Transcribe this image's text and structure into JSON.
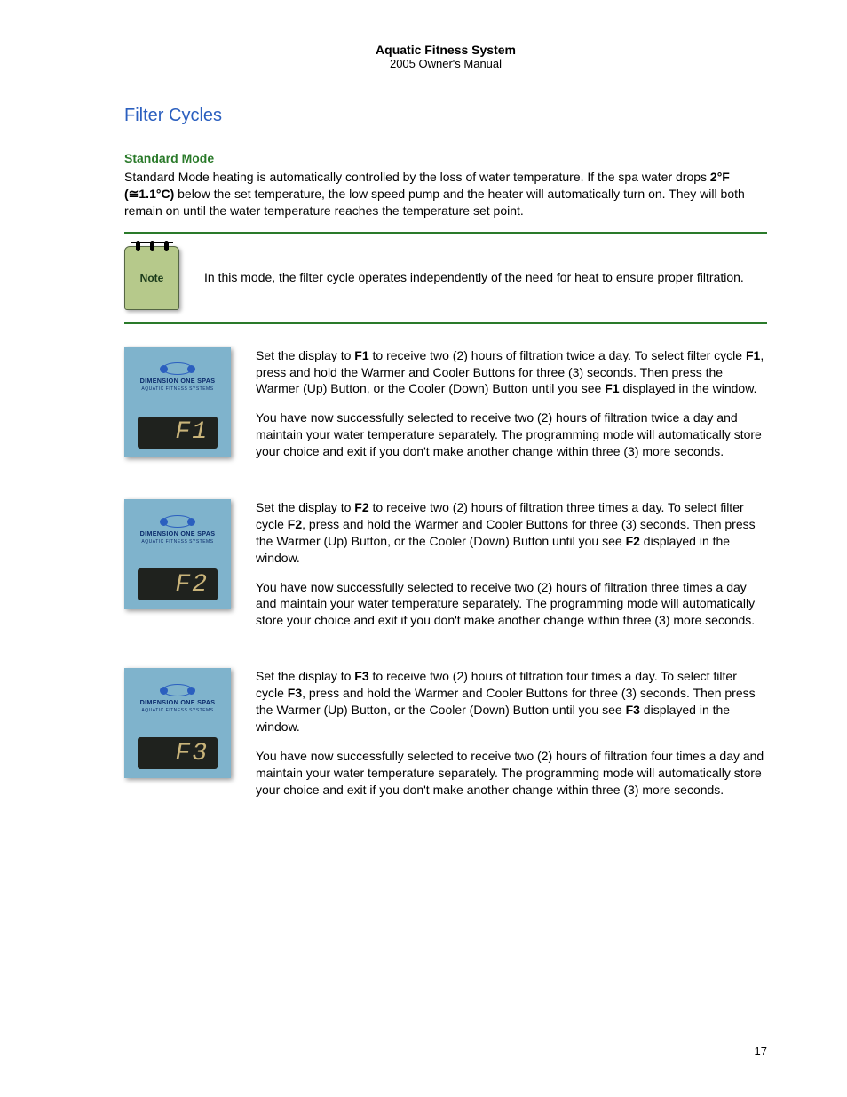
{
  "colors": {
    "heading_blue": "#2b5fbf",
    "green_heading": "#2a7a2a",
    "note_border": "#2a7a2a",
    "note_bg": "#b6c98b",
    "note_text": "#1a3a1a",
    "panel_bg": "#7fb3cc",
    "panel_brand": "#0b2b6b",
    "panel_logo": "#2b5fbf",
    "lcd_bg": "#1f221e",
    "lcd_glow": "#c9b47a",
    "page_bg": "#ffffff",
    "text": "#000000"
  },
  "header": {
    "title": "Aquatic Fitness System",
    "subtitle": "2005 Owner's Manual"
  },
  "section_title": "Filter Cycles",
  "standard_mode": {
    "heading": "Standard Mode",
    "body_pre": "Standard Mode heating is automatically controlled by the loss of water temperature.  If the spa water drops ",
    "bold_temp": "2°F (≅1.1°C)",
    "body_post": " below the set temperature, the low speed pump and the heater will automatically turn on.  They will both remain on until the water temperature reaches the temperature set point."
  },
  "note": {
    "icon_label": "Note",
    "text": "In this mode, the filter cycle operates independently of the need for heat to ensure proper filtration."
  },
  "panel_brand": {
    "name": "DIMENSION ONE SPAS",
    "sub": "AQUATIC FITNESS SYSTEMS"
  },
  "cycles": [
    {
      "code": "F1",
      "lcd": "F1",
      "p1_a": "Set the display to ",
      "p1_b_bold": "F1",
      "p1_c": " to receive two (2) hours of filtration twice a day. To select filter cycle ",
      "p1_d_bold": "F1",
      "p1_e": ", press and hold the Warmer and Cooler Buttons for three (3) seconds. Then press the Warmer (Up) Button, or the Cooler (Down) Button until you see ",
      "p1_f_bold": "F1",
      "p1_g": " displayed in the window.",
      "p2": "You have now successfully selected to receive two (2) hours of filtration twice a day and maintain your water temperature separately. The programming mode will automatically store your choice and exit if you don't make another change within three (3) more seconds."
    },
    {
      "code": "F2",
      "lcd": "F2",
      "p1_a": "Set the display to ",
      "p1_b_bold": "F2",
      "p1_c": " to receive two (2) hours of filtration three times a day. To select filter cycle ",
      "p1_d_bold": "F2",
      "p1_e": ", press and hold the Warmer and Cooler Buttons for three (3) seconds. Then press the Warmer (Up) Button, or the Cooler (Down) Button until you see ",
      "p1_f_bold": "F2",
      "p1_g": " displayed in the window.",
      "p2": "You have now successfully selected to receive two (2) hours of filtration three times a day and maintain your water temperature separately. The programming mode will automatically store your choice and exit if you don't make another change within three (3) more seconds."
    },
    {
      "code": "F3",
      "lcd": "F3",
      "p1_a": "Set the display to ",
      "p1_b_bold": "F3",
      "p1_c": " to receive two (2) hours of filtration four times a day. To select filter cycle ",
      "p1_d_bold": "F3",
      "p1_e": ", press and hold the Warmer and Cooler Buttons for three (3) seconds. Then press the Warmer (Up) Button, or the Cooler (Down) Button until you see ",
      "p1_f_bold": "F3",
      "p1_g": " displayed in the window.",
      "p2": "You have now successfully selected to receive two (2) hours of filtration four times a day and maintain your water temperature separately. The programming mode will automatically store your choice and exit if you don't make another change within three (3) more seconds."
    }
  ],
  "page_number": "17"
}
